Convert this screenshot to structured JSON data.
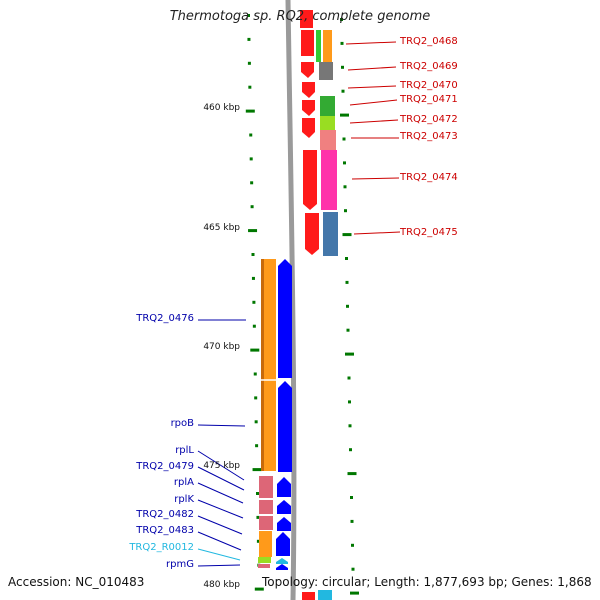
{
  "title": "Thermotoga sp. RQ2, complete genome",
  "accession": "Accession: NC_010483",
  "topology": "Topology: circular; Length: 1,877,693 bp; Genes: 1,868",
  "colors": {
    "red": "#ff1a1a",
    "orange": "#ff9a1a",
    "blue": "#0000ff",
    "green": "#33cc33",
    "gray": "#777777",
    "pink": "#f08080",
    "magenta": "#ff33aa",
    "steel": "#4477aa",
    "rosy": "#dd6677",
    "lime": "#99dd22",
    "cyan": "#22b8e0",
    "tick": "#007700"
  },
  "scale_labels": [
    {
      "name": "scale-460",
      "text": "460 kbp"
    },
    {
      "name": "scale-465",
      "text": "465 kbp"
    },
    {
      "name": "scale-470",
      "text": "470 kbp"
    },
    {
      "name": "scale-475",
      "text": "475 kbp"
    },
    {
      "name": "scale-480",
      "text": "480 kbp"
    }
  ],
  "forward_genes": [
    {
      "label": "TRQ2_0468"
    },
    {
      "label": "TRQ2_0469"
    },
    {
      "label": "TRQ2_0470"
    },
    {
      "label": "TRQ2_0471"
    },
    {
      "label": "TRQ2_0472"
    },
    {
      "label": "TRQ2_0473"
    },
    {
      "label": "TRQ2_0474"
    },
    {
      "label": "TRQ2_0475"
    }
  ],
  "reverse_genes": [
    {
      "label": "TRQ2_0476"
    },
    {
      "label": "rpoB"
    },
    {
      "label": "rplL"
    },
    {
      "label": "TRQ2_0479"
    },
    {
      "label": "rplA"
    },
    {
      "label": "rplK"
    },
    {
      "label": "TRQ2_0482"
    },
    {
      "label": "TRQ2_0483"
    },
    {
      "label": "TRQ2_R0012"
    },
    {
      "label": "rpmG"
    }
  ]
}
